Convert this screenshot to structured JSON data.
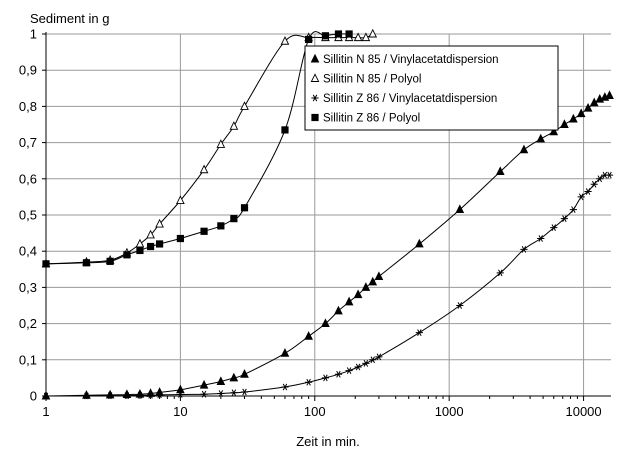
{
  "chart_data": {
    "type": "line",
    "title": "",
    "ylabel": "Sediment in g",
    "xlabel": "Zeit in min.",
    "x_scale": "log",
    "xlim": [
      1,
      16000
    ],
    "ylim": [
      0,
      1
    ],
    "grid": true,
    "legend_position": "top-right",
    "x_tick_labels": [
      {
        "value": 1,
        "label": "1"
      },
      {
        "value": 10,
        "label": "10"
      },
      {
        "value": 100,
        "label": "100"
      },
      {
        "value": 1000,
        "label": "1000"
      },
      {
        "value": 10000,
        "label": "10000"
      }
    ],
    "y_tick_labels": [
      {
        "value": 0,
        "label": "0"
      },
      {
        "value": 0.1,
        "label": "0,1"
      },
      {
        "value": 0.2,
        "label": "0,2"
      },
      {
        "value": 0.3,
        "label": "0,3"
      },
      {
        "value": 0.4,
        "label": "0,4"
      },
      {
        "value": 0.5,
        "label": "0,5"
      },
      {
        "value": 0.6,
        "label": "0,6"
      },
      {
        "value": 0.7,
        "label": "0,7"
      },
      {
        "value": 0.8,
        "label": "0,8"
      },
      {
        "value": 0.9,
        "label": "0,9"
      },
      {
        "value": 1,
        "label": "1"
      }
    ],
    "series": [
      {
        "name": "Sillitin N 85 / Vinylacetatdispersion",
        "marker": "filled-triangle",
        "x": [
          1,
          2,
          3,
          4,
          5,
          6,
          7,
          10,
          15,
          20,
          25,
          30,
          60,
          90,
          120,
          150,
          180,
          210,
          240,
          270,
          300,
          600,
          1200,
          2400,
          3600,
          4800,
          6000,
          7200,
          8400,
          9600,
          10800,
          12000,
          13200,
          14400,
          15600
        ],
        "values": [
          0,
          0.002,
          0.003,
          0.004,
          0.005,
          0.007,
          0.01,
          0.017,
          0.03,
          0.04,
          0.05,
          0.06,
          0.118,
          0.165,
          0.2,
          0.235,
          0.26,
          0.28,
          0.3,
          0.315,
          0.33,
          0.42,
          0.515,
          0.62,
          0.68,
          0.71,
          0.73,
          0.75,
          0.765,
          0.78,
          0.795,
          0.81,
          0.82,
          0.825,
          0.83
        ]
      },
      {
        "name": "Sillitin N 85 / Polyol",
        "marker": "open-triangle",
        "x": [
          1,
          2,
          3,
          4,
          5,
          6,
          7,
          10,
          15,
          20,
          25,
          30,
          60,
          90,
          120,
          150,
          180,
          210,
          240,
          270
        ],
        "values": [
          0.365,
          0.37,
          0.375,
          0.395,
          0.42,
          0.445,
          0.475,
          0.54,
          0.625,
          0.695,
          0.745,
          0.8,
          0.98,
          0.99,
          0.99,
          0.99,
          0.99,
          0.99,
          0.99,
          1.0
        ]
      },
      {
        "name": "Sillitin Z 86 / Vinylacetatdispersion",
        "marker": "star",
        "x": [
          1,
          2,
          3,
          4,
          5,
          6,
          7,
          10,
          15,
          20,
          25,
          30,
          60,
          90,
          120,
          150,
          180,
          210,
          240,
          270,
          300,
          600,
          1200,
          2400,
          3600,
          4800,
          6000,
          7200,
          8400,
          9600,
          10800,
          12000,
          13200,
          14400,
          15600
        ],
        "values": [
          0,
          0,
          0.001,
          0.001,
          0.002,
          0.002,
          0.003,
          0.004,
          0.005,
          0.007,
          0.009,
          0.011,
          0.025,
          0.038,
          0.05,
          0.06,
          0.07,
          0.08,
          0.09,
          0.1,
          0.108,
          0.175,
          0.25,
          0.34,
          0.405,
          0.435,
          0.465,
          0.49,
          0.515,
          0.55,
          0.565,
          0.585,
          0.6,
          0.61,
          0.61
        ]
      },
      {
        "name": "Sillitin Z 86 / Polyol",
        "marker": "filled-square",
        "x": [
          1,
          2,
          3,
          4,
          5,
          6,
          7,
          10,
          15,
          20,
          25,
          30,
          60,
          90,
          120,
          150,
          180
        ],
        "values": [
          0.365,
          0.368,
          0.372,
          0.39,
          0.402,
          0.413,
          0.42,
          0.435,
          0.455,
          0.47,
          0.49,
          0.52,
          0.735,
          0.985,
          0.995,
          1.0,
          1.0
        ]
      }
    ]
  }
}
